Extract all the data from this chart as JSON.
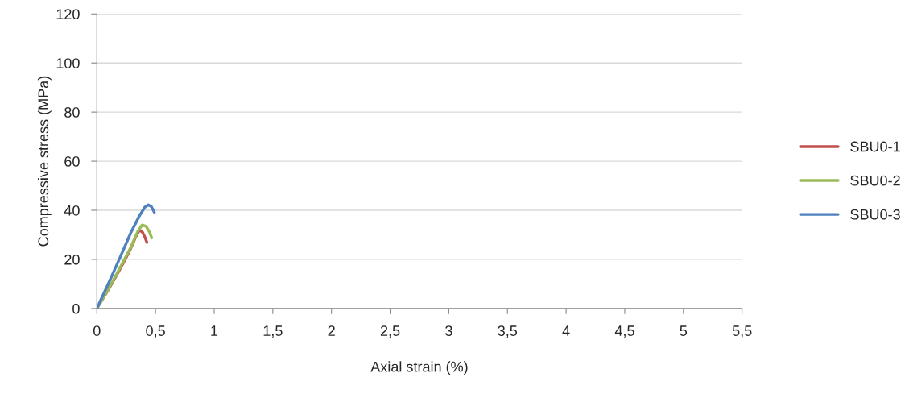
{
  "chart_data": {
    "type": "line",
    "xlabel": "Axial strain (%)",
    "ylabel": "Compressive stress (MPa)",
    "xlim": [
      0,
      5.5
    ],
    "ylim": [
      0,
      120
    ],
    "xticks": [
      0,
      {
        "value": 0.5,
        "label": "0,5"
      },
      1,
      {
        "value": 1.5,
        "label": "1,5"
      },
      2,
      {
        "value": 2.5,
        "label": "2,5"
      },
      3,
      {
        "value": 3.5,
        "label": "3,5"
      },
      4,
      {
        "value": 4.5,
        "label": "4,5"
      },
      5,
      {
        "value": 5.5,
        "label": "5,5"
      }
    ],
    "yticks": [
      0,
      20,
      40,
      60,
      80,
      100,
      120
    ],
    "grid": "y",
    "legend": "right",
    "marker": "none",
    "line_style": "solid",
    "series": [
      {
        "name": "SBU0-1",
        "color": "#c0504d",
        "x": [
          0,
          0.1,
          0.2,
          0.28,
          0.33,
          0.364,
          0.39,
          0.41,
          0.427
        ],
        "values": [
          0,
          7.8,
          16.2,
          23.5,
          29.0,
          32.0,
          31.0,
          29.0,
          26.9
        ]
      },
      {
        "name": "SBU0-2",
        "color": "#9bbb59",
        "x": [
          0,
          0.1,
          0.2,
          0.29,
          0.35,
          0.386,
          0.42,
          0.45,
          0.468
        ],
        "values": [
          0,
          8.0,
          16.8,
          25.0,
          31.5,
          34.0,
          33.5,
          31.0,
          28.7
        ]
      },
      {
        "name": "SBU0-3",
        "color": "#4f81bd",
        "x": [
          0,
          0.1,
          0.2,
          0.29,
          0.36,
          0.41,
          0.439,
          0.465,
          0.49
        ],
        "values": [
          0,
          10.3,
          21.0,
          30.9,
          37.5,
          41.3,
          42.2,
          41.5,
          39.2
        ]
      }
    ]
  }
}
